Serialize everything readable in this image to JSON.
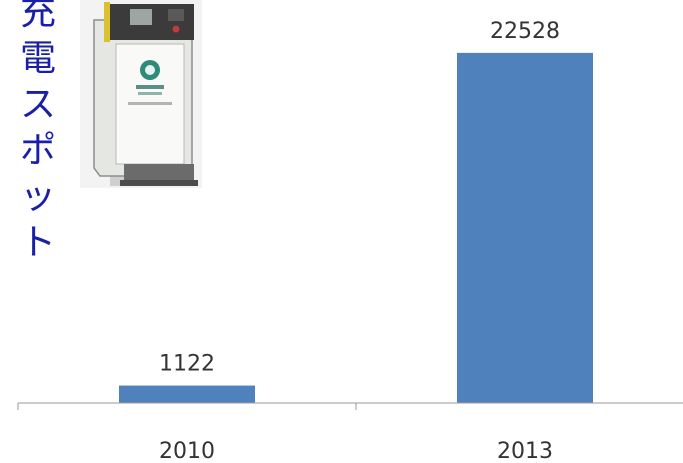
{
  "chart_data": {
    "type": "bar",
    "title": "充電スポット",
    "categories": [
      "2010",
      "2013"
    ],
    "values": [
      1122,
      22528
    ],
    "data_labels": [
      "1122",
      "22528"
    ],
    "ylim": [
      0,
      24000
    ],
    "grid": false,
    "bar_color": "#4f81bd",
    "title_color": "#1a1fa8"
  },
  "image": {
    "name": "charging-station-photo"
  }
}
